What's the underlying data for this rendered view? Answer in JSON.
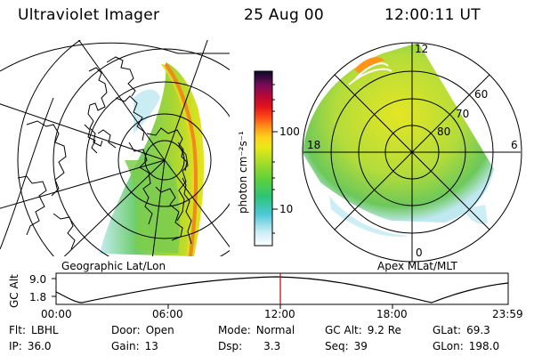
{
  "header": {
    "instrument": "Ultraviolet Imager",
    "date": "25 Aug 00",
    "time": "12:00:11 UT"
  },
  "left_map": {
    "label": "Geographic Lat/Lon"
  },
  "right_map": {
    "label": "Apex MLat/MLT",
    "mlt_labels": {
      "top": "12",
      "bottom": "0",
      "left": "18",
      "right": "6"
    },
    "lat_labels": [
      "60",
      "70",
      "80"
    ]
  },
  "colorbar": {
    "unit_label": "photon cm⁻²s⁻¹",
    "ticks": [
      "100",
      "10"
    ],
    "scale": "log"
  },
  "alt_plot": {
    "ylabel": "GC Alt",
    "yticks": [
      "9.0",
      "1.8"
    ],
    "xticks": [
      "00:00",
      "06:00",
      "12:00",
      "18:00",
      "23:59"
    ],
    "marker_time": "12:00"
  },
  "footer": {
    "row1": [
      {
        "key": "Flt:",
        "value": "LBHL"
      },
      {
        "key": "Door:",
        "value": "Open"
      },
      {
        "key": "Mode:",
        "value": "Normal"
      },
      {
        "key": "GC Alt:",
        "value": "9.2 Re"
      },
      {
        "key": "GLat:",
        "value": "69.3"
      }
    ],
    "row2": [
      {
        "key": "IP:",
        "value": "36.0"
      },
      {
        "key": "Gain:",
        "value": "13"
      },
      {
        "key": "Dsp:",
        "value": "3.3"
      },
      {
        "key": "Seq:",
        "value": "39"
      },
      {
        "key": "GLon:",
        "value": "198.0"
      }
    ]
  },
  "colors": {
    "marker": "#c00000",
    "aurora_low": "#b8e6ef",
    "aurora_mid": "#9ed03a",
    "aurora_high": "#e8e820"
  }
}
